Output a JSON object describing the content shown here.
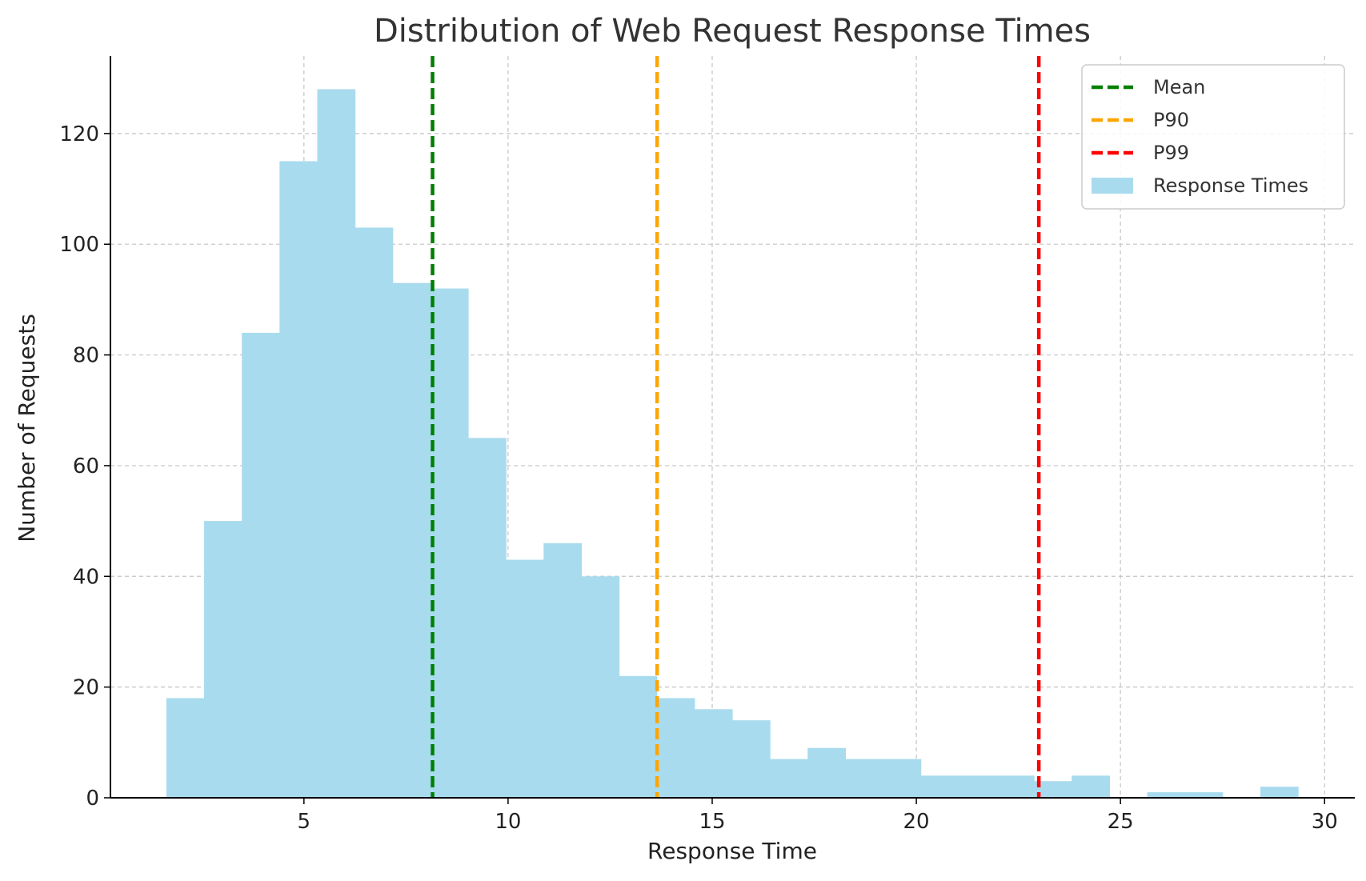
{
  "chart_data": {
    "type": "bar",
    "title": "Distribution of Web Request Response Times",
    "xlabel": "Response Time",
    "ylabel": "Number of Requests",
    "xlim": [
      0.26,
      30.74
    ],
    "ylim": [
      0,
      134
    ],
    "xticks": [
      5,
      10,
      15,
      20,
      25,
      30
    ],
    "yticks": [
      0,
      20,
      40,
      60,
      80,
      100,
      120
    ],
    "grid": true,
    "legend_position": "top-right",
    "bin_start": 1.63,
    "bin_width": 0.924,
    "counts": [
      18,
      50,
      84,
      115,
      128,
      103,
      93,
      92,
      65,
      43,
      46,
      40,
      22,
      18,
      16,
      14,
      7,
      9,
      7,
      7,
      4,
      4,
      4,
      3,
      4,
      0,
      1,
      1,
      0,
      2
    ],
    "series": [
      {
        "name": "Response Times",
        "kind": "histogram",
        "color": "#a9dbee"
      }
    ],
    "reference_lines": [
      {
        "name": "Mean",
        "x": 8.15,
        "color": "#008000"
      },
      {
        "name": "P90",
        "x": 13.65,
        "color": "#ffa500"
      },
      {
        "name": "P99",
        "x": 23.0,
        "color": "#ff0000"
      }
    ]
  }
}
